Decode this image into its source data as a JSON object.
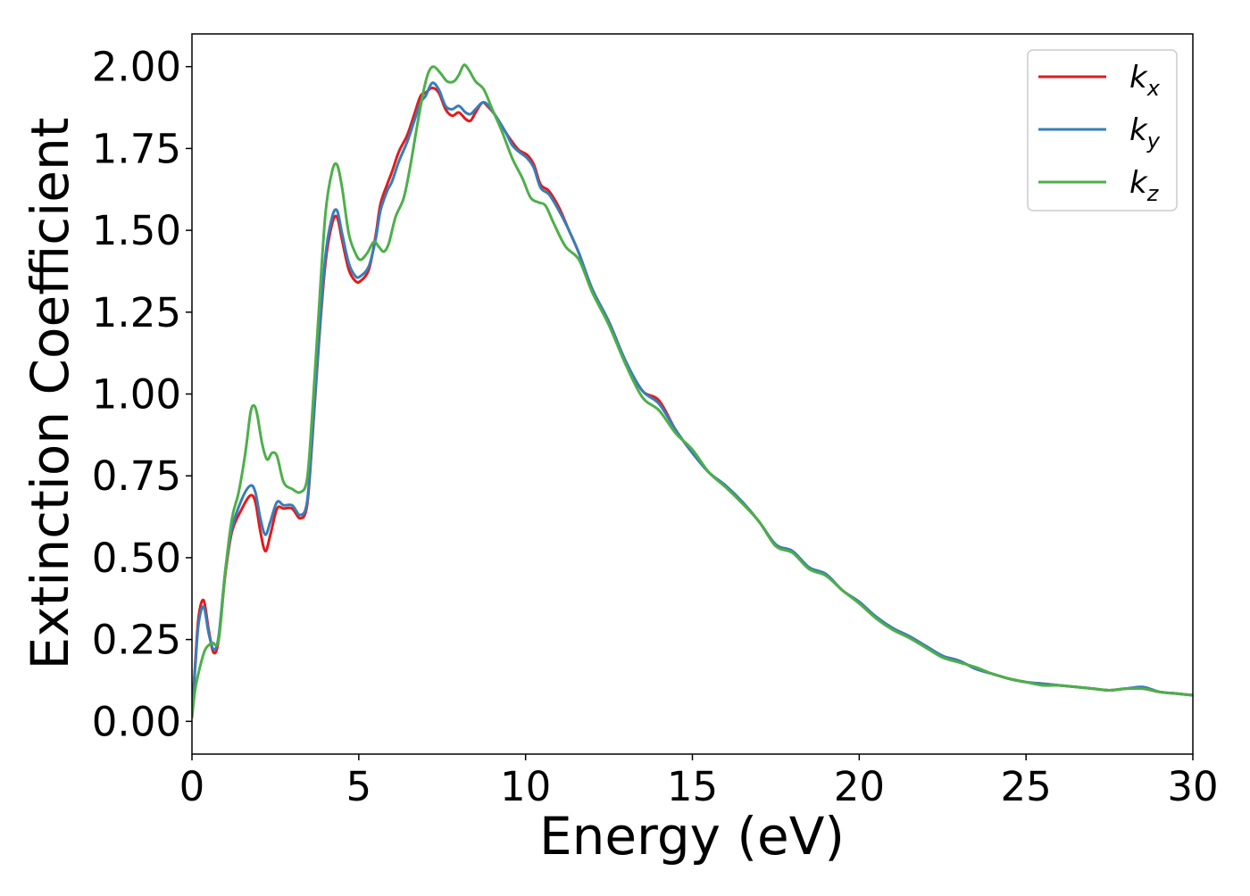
{
  "chart_data": {
    "type": "line",
    "xlabel": "Energy (eV)",
    "ylabel": "Extinction Coefficient",
    "xlim": [
      0,
      30
    ],
    "ylim": [
      -0.1,
      2.1
    ],
    "x_ticks": [
      0,
      5,
      10,
      15,
      20,
      25,
      30
    ],
    "y_ticks": [
      0.0,
      0.25,
      0.5,
      0.75,
      1.0,
      1.25,
      1.5,
      1.75,
      2.0
    ],
    "x_tick_labels": [
      "0",
      "5",
      "10",
      "15",
      "20",
      "25",
      "30"
    ],
    "y_tick_labels": [
      "0.00",
      "0.25",
      "0.50",
      "0.75",
      "1.00",
      "1.25",
      "1.50",
      "1.75",
      "2.00"
    ],
    "grid": false,
    "legend_position": "top-right",
    "series": [
      {
        "name": "k_x",
        "label_main": "k",
        "label_sub": "x",
        "color": "#e41a1c",
        "points": [
          [
            0,
            0.02
          ],
          [
            0.1,
            0.18
          ],
          [
            0.2,
            0.32
          ],
          [
            0.35,
            0.37
          ],
          [
            0.5,
            0.28
          ],
          [
            0.65,
            0.21
          ],
          [
            0.8,
            0.25
          ],
          [
            1.0,
            0.45
          ],
          [
            1.2,
            0.58
          ],
          [
            1.5,
            0.65
          ],
          [
            1.75,
            0.69
          ],
          [
            1.9,
            0.67
          ],
          [
            2.05,
            0.58
          ],
          [
            2.2,
            0.52
          ],
          [
            2.35,
            0.57
          ],
          [
            2.55,
            0.65
          ],
          [
            2.75,
            0.65
          ],
          [
            3.0,
            0.65
          ],
          [
            3.25,
            0.62
          ],
          [
            3.45,
            0.66
          ],
          [
            3.6,
            0.85
          ],
          [
            3.8,
            1.15
          ],
          [
            4.0,
            1.4
          ],
          [
            4.2,
            1.52
          ],
          [
            4.35,
            1.54
          ],
          [
            4.5,
            1.47
          ],
          [
            4.7,
            1.38
          ],
          [
            4.9,
            1.345
          ],
          [
            5.05,
            1.345
          ],
          [
            5.3,
            1.38
          ],
          [
            5.5,
            1.48
          ],
          [
            5.65,
            1.58
          ],
          [
            5.85,
            1.64
          ],
          [
            6.0,
            1.68
          ],
          [
            6.2,
            1.74
          ],
          [
            6.45,
            1.79
          ],
          [
            6.65,
            1.85
          ],
          [
            6.85,
            1.91
          ],
          [
            7.0,
            1.92
          ],
          [
            7.2,
            1.935
          ],
          [
            7.4,
            1.92
          ],
          [
            7.6,
            1.87
          ],
          [
            7.8,
            1.85
          ],
          [
            8.0,
            1.86
          ],
          [
            8.2,
            1.84
          ],
          [
            8.35,
            1.835
          ],
          [
            8.5,
            1.86
          ],
          [
            8.7,
            1.89
          ],
          [
            8.85,
            1.88
          ],
          [
            9.1,
            1.85
          ],
          [
            9.4,
            1.8
          ],
          [
            9.6,
            1.77
          ],
          [
            9.8,
            1.745
          ],
          [
            10.05,
            1.73
          ],
          [
            10.25,
            1.7
          ],
          [
            10.45,
            1.64
          ],
          [
            10.7,
            1.62
          ],
          [
            11.0,
            1.57
          ],
          [
            11.3,
            1.5
          ],
          [
            11.6,
            1.43
          ],
          [
            12.0,
            1.32
          ],
          [
            12.5,
            1.22
          ],
          [
            13.0,
            1.1
          ],
          [
            13.5,
            1.01
          ],
          [
            14.0,
            0.98
          ],
          [
            14.5,
            0.89
          ],
          [
            15.0,
            0.82
          ],
          [
            15.5,
            0.76
          ],
          [
            16.0,
            0.72
          ],
          [
            16.5,
            0.67
          ],
          [
            17.0,
            0.61
          ],
          [
            17.5,
            0.54
          ],
          [
            18.0,
            0.52
          ],
          [
            18.5,
            0.47
          ],
          [
            19.0,
            0.45
          ],
          [
            19.5,
            0.4
          ],
          [
            20.0,
            0.365
          ],
          [
            20.5,
            0.32
          ],
          [
            21.0,
            0.285
          ],
          [
            21.5,
            0.26
          ],
          [
            22.0,
            0.23
          ],
          [
            22.5,
            0.2
          ],
          [
            23.0,
            0.185
          ],
          [
            23.5,
            0.16
          ],
          [
            24.0,
            0.145
          ],
          [
            24.5,
            0.13
          ],
          [
            25.0,
            0.12
          ],
          [
            25.5,
            0.115
          ],
          [
            26.0,
            0.11
          ],
          [
            26.5,
            0.105
          ],
          [
            27.0,
            0.1
          ],
          [
            27.5,
            0.095
          ],
          [
            28.0,
            0.1
          ],
          [
            28.5,
            0.1
          ],
          [
            29.0,
            0.09
          ],
          [
            29.5,
            0.085
          ],
          [
            30.0,
            0.08
          ]
        ]
      },
      {
        "name": "k_y",
        "label_main": "k",
        "label_sub": "y",
        "color": "#377eb8",
        "points": [
          [
            0,
            0.02
          ],
          [
            0.1,
            0.17
          ],
          [
            0.2,
            0.3
          ],
          [
            0.35,
            0.35
          ],
          [
            0.5,
            0.27
          ],
          [
            0.65,
            0.22
          ],
          [
            0.8,
            0.26
          ],
          [
            1.0,
            0.46
          ],
          [
            1.2,
            0.59
          ],
          [
            1.5,
            0.68
          ],
          [
            1.75,
            0.72
          ],
          [
            1.9,
            0.7
          ],
          [
            2.05,
            0.62
          ],
          [
            2.2,
            0.57
          ],
          [
            2.35,
            0.61
          ],
          [
            2.55,
            0.67
          ],
          [
            2.75,
            0.66
          ],
          [
            3.0,
            0.66
          ],
          [
            3.25,
            0.63
          ],
          [
            3.45,
            0.67
          ],
          [
            3.6,
            0.86
          ],
          [
            3.8,
            1.16
          ],
          [
            4.0,
            1.42
          ],
          [
            4.2,
            1.54
          ],
          [
            4.35,
            1.56
          ],
          [
            4.5,
            1.49
          ],
          [
            4.7,
            1.4
          ],
          [
            4.9,
            1.36
          ],
          [
            5.05,
            1.36
          ],
          [
            5.3,
            1.39
          ],
          [
            5.5,
            1.47
          ],
          [
            5.65,
            1.56
          ],
          [
            5.85,
            1.62
          ],
          [
            6.0,
            1.65
          ],
          [
            6.2,
            1.71
          ],
          [
            6.45,
            1.77
          ],
          [
            6.65,
            1.83
          ],
          [
            6.85,
            1.89
          ],
          [
            7.0,
            1.91
          ],
          [
            7.2,
            1.95
          ],
          [
            7.4,
            1.93
          ],
          [
            7.6,
            1.88
          ],
          [
            7.8,
            1.87
          ],
          [
            8.0,
            1.88
          ],
          [
            8.2,
            1.86
          ],
          [
            8.35,
            1.855
          ],
          [
            8.5,
            1.87
          ],
          [
            8.7,
            1.89
          ],
          [
            8.85,
            1.885
          ],
          [
            9.1,
            1.85
          ],
          [
            9.4,
            1.8
          ],
          [
            9.6,
            1.76
          ],
          [
            9.8,
            1.74
          ],
          [
            10.05,
            1.72
          ],
          [
            10.25,
            1.69
          ],
          [
            10.45,
            1.63
          ],
          [
            10.7,
            1.61
          ],
          [
            11.0,
            1.56
          ],
          [
            11.3,
            1.5
          ],
          [
            11.6,
            1.43
          ],
          [
            12.0,
            1.32
          ],
          [
            12.5,
            1.22
          ],
          [
            13.0,
            1.1
          ],
          [
            13.5,
            1.01
          ],
          [
            14.0,
            0.97
          ],
          [
            14.5,
            0.89
          ],
          [
            15.0,
            0.82
          ],
          [
            15.5,
            0.76
          ],
          [
            16.0,
            0.72
          ],
          [
            16.5,
            0.67
          ],
          [
            17.0,
            0.61
          ],
          [
            17.5,
            0.54
          ],
          [
            18.0,
            0.52
          ],
          [
            18.5,
            0.47
          ],
          [
            19.0,
            0.45
          ],
          [
            19.5,
            0.4
          ],
          [
            20.0,
            0.365
          ],
          [
            20.5,
            0.32
          ],
          [
            21.0,
            0.285
          ],
          [
            21.5,
            0.26
          ],
          [
            22.0,
            0.23
          ],
          [
            22.5,
            0.2
          ],
          [
            23.0,
            0.185
          ],
          [
            23.5,
            0.16
          ],
          [
            24.0,
            0.145
          ],
          [
            24.5,
            0.13
          ],
          [
            25.0,
            0.12
          ],
          [
            25.5,
            0.115
          ],
          [
            26.0,
            0.11
          ],
          [
            26.5,
            0.105
          ],
          [
            27.0,
            0.1
          ],
          [
            27.5,
            0.095
          ],
          [
            28.0,
            0.1
          ],
          [
            28.5,
            0.105
          ],
          [
            29.0,
            0.09
          ],
          [
            29.5,
            0.085
          ],
          [
            30.0,
            0.08
          ]
        ]
      },
      {
        "name": "k_z",
        "label_main": "k",
        "label_sub": "z",
        "color": "#4daf4a",
        "points": [
          [
            0,
            0.01
          ],
          [
            0.1,
            0.1
          ],
          [
            0.25,
            0.17
          ],
          [
            0.4,
            0.22
          ],
          [
            0.6,
            0.24
          ],
          [
            0.8,
            0.25
          ],
          [
            1.0,
            0.46
          ],
          [
            1.2,
            0.62
          ],
          [
            1.4,
            0.7
          ],
          [
            1.6,
            0.82
          ],
          [
            1.75,
            0.94
          ],
          [
            1.85,
            0.965
          ],
          [
            1.95,
            0.94
          ],
          [
            2.1,
            0.85
          ],
          [
            2.25,
            0.8
          ],
          [
            2.4,
            0.82
          ],
          [
            2.55,
            0.81
          ],
          [
            2.75,
            0.73
          ],
          [
            3.0,
            0.71
          ],
          [
            3.25,
            0.7
          ],
          [
            3.45,
            0.74
          ],
          [
            3.6,
            0.93
          ],
          [
            3.8,
            1.25
          ],
          [
            4.0,
            1.55
          ],
          [
            4.2,
            1.68
          ],
          [
            4.35,
            1.7
          ],
          [
            4.5,
            1.63
          ],
          [
            4.7,
            1.49
          ],
          [
            4.9,
            1.43
          ],
          [
            5.05,
            1.41
          ],
          [
            5.25,
            1.43
          ],
          [
            5.45,
            1.465
          ],
          [
            5.6,
            1.45
          ],
          [
            5.75,
            1.435
          ],
          [
            5.9,
            1.46
          ],
          [
            6.1,
            1.54
          ],
          [
            6.35,
            1.6
          ],
          [
            6.55,
            1.7
          ],
          [
            6.75,
            1.82
          ],
          [
            6.95,
            1.93
          ],
          [
            7.1,
            1.985
          ],
          [
            7.25,
            2.0
          ],
          [
            7.45,
            1.98
          ],
          [
            7.65,
            1.955
          ],
          [
            7.85,
            1.955
          ],
          [
            8.0,
            1.975
          ],
          [
            8.15,
            2.005
          ],
          [
            8.3,
            1.99
          ],
          [
            8.5,
            1.955
          ],
          [
            8.75,
            1.93
          ],
          [
            9.0,
            1.87
          ],
          [
            9.3,
            1.8
          ],
          [
            9.6,
            1.72
          ],
          [
            9.9,
            1.66
          ],
          [
            10.15,
            1.6
          ],
          [
            10.4,
            1.585
          ],
          [
            10.6,
            1.575
          ],
          [
            10.85,
            1.52
          ],
          [
            11.2,
            1.45
          ],
          [
            11.6,
            1.41
          ],
          [
            12.0,
            1.31
          ],
          [
            12.5,
            1.21
          ],
          [
            13.0,
            1.09
          ],
          [
            13.5,
            0.99
          ],
          [
            14.0,
            0.95
          ],
          [
            14.5,
            0.88
          ],
          [
            15.0,
            0.83
          ],
          [
            15.5,
            0.76
          ],
          [
            16.0,
            0.715
          ],
          [
            16.5,
            0.665
          ],
          [
            17.0,
            0.61
          ],
          [
            17.5,
            0.535
          ],
          [
            18.0,
            0.515
          ],
          [
            18.5,
            0.465
          ],
          [
            19.0,
            0.445
          ],
          [
            19.5,
            0.4
          ],
          [
            20.0,
            0.36
          ],
          [
            20.5,
            0.315
          ],
          [
            21.0,
            0.28
          ],
          [
            21.5,
            0.255
          ],
          [
            22.0,
            0.225
          ],
          [
            22.5,
            0.195
          ],
          [
            23.0,
            0.18
          ],
          [
            23.5,
            0.165
          ],
          [
            24.0,
            0.145
          ],
          [
            24.5,
            0.13
          ],
          [
            25.0,
            0.12
          ],
          [
            25.5,
            0.11
          ],
          [
            26.0,
            0.11
          ],
          [
            26.5,
            0.105
          ],
          [
            27.0,
            0.1
          ],
          [
            27.5,
            0.095
          ],
          [
            28.0,
            0.1
          ],
          [
            28.5,
            0.1
          ],
          [
            29.0,
            0.09
          ],
          [
            29.5,
            0.085
          ],
          [
            30.0,
            0.08
          ]
        ]
      }
    ]
  }
}
